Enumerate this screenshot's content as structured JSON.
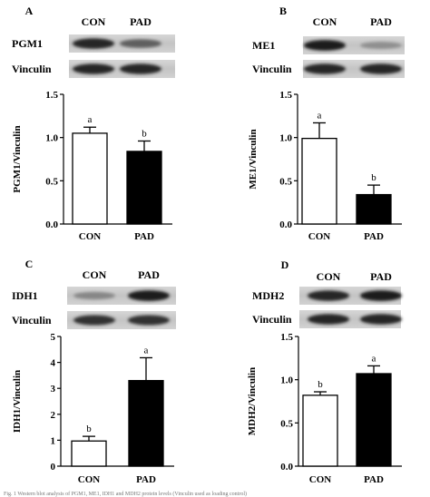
{
  "figure": {
    "caption_fragment": "Fig. 1 Western blot analysis of PGM1, ME1, IDH1 and MDH2 protein levels (Vinculin used as loading control)"
  },
  "chart_data": [
    {
      "panel_letter": "A",
      "type": "bar",
      "blot": {
        "lanes": [
          "CON",
          "PAD"
        ],
        "rows": [
          {
            "label": "PGM1",
            "intensity": [
              0.85,
              0.55
            ]
          },
          {
            "label": "Vinculin",
            "intensity": [
              0.85,
              0.85
            ]
          }
        ]
      },
      "categories": [
        "CON",
        "PAD"
      ],
      "values": [
        1.05,
        0.84
      ],
      "errors": [
        0.07,
        0.12
      ],
      "letters": [
        "a",
        "b"
      ],
      "bar_fill": [
        "#ffffff",
        "#000000"
      ],
      "ylabel": "PGM1/Vinculin",
      "ylim": [
        0,
        1.5
      ],
      "yticks": [
        0.0,
        0.5,
        1.0,
        1.5
      ],
      "ytick_labels": [
        "0.0",
        "0.5",
        "1.0",
        "1.5"
      ],
      "grid": false
    },
    {
      "panel_letter": "B",
      "type": "bar",
      "blot": {
        "lanes": [
          "CON",
          "PAD"
        ],
        "rows": [
          {
            "label": "ME1",
            "intensity": [
              0.9,
              0.3
            ]
          },
          {
            "label": "Vinculin",
            "intensity": [
              0.85,
              0.85
            ]
          }
        ]
      },
      "categories": [
        "CON",
        "PAD"
      ],
      "values": [
        0.99,
        0.34
      ],
      "errors": [
        0.18,
        0.11
      ],
      "letters": [
        "a",
        "b"
      ],
      "bar_fill": [
        "#ffffff",
        "#000000"
      ],
      "ylabel": "ME1/Vinculin",
      "ylim": [
        0,
        1.5
      ],
      "yticks": [
        0.0,
        0.5,
        1.0,
        1.5
      ],
      "ytick_labels": [
        "0.0",
        "0.5",
        "1.0",
        "1.5"
      ],
      "grid": false
    },
    {
      "panel_letter": "C",
      "type": "bar",
      "blot": {
        "lanes": [
          "CON",
          "PAD"
        ],
        "rows": [
          {
            "label": "IDH1",
            "intensity": [
              0.35,
              0.9
            ]
          },
          {
            "label": "Vinculin",
            "intensity": [
              0.8,
              0.8
            ]
          }
        ]
      },
      "categories": [
        "CON",
        "PAD"
      ],
      "values": [
        0.97,
        3.3
      ],
      "errors": [
        0.18,
        0.88
      ],
      "letters": [
        "b",
        "a"
      ],
      "bar_fill": [
        "#ffffff",
        "#000000"
      ],
      "ylabel": "IDH1/Vinculin",
      "ylim": [
        0,
        5
      ],
      "yticks": [
        0,
        1,
        2,
        3,
        4,
        5
      ],
      "ytick_labels": [
        "0",
        "1",
        "2",
        "3",
        "4",
        "5"
      ],
      "grid": false
    },
    {
      "panel_letter": "D",
      "type": "bar",
      "blot": {
        "lanes": [
          "CON",
          "PAD"
        ],
        "rows": [
          {
            "label": "MDH2",
            "intensity": [
              0.85,
              0.9
            ]
          },
          {
            "label": "Vinculin",
            "intensity": [
              0.85,
              0.85
            ]
          }
        ]
      },
      "categories": [
        "CON",
        "PAD"
      ],
      "values": [
        0.82,
        1.07
      ],
      "errors": [
        0.04,
        0.09
      ],
      "letters": [
        "b",
        "a"
      ],
      "bar_fill": [
        "#ffffff",
        "#000000"
      ],
      "ylabel": "MDH2/Vinculin",
      "ylim": [
        0,
        1.5
      ],
      "yticks": [
        0.0,
        0.5,
        1.0,
        1.5
      ],
      "ytick_labels": [
        "0.0",
        "0.5",
        "1.0",
        "1.5"
      ],
      "grid": false
    }
  ]
}
